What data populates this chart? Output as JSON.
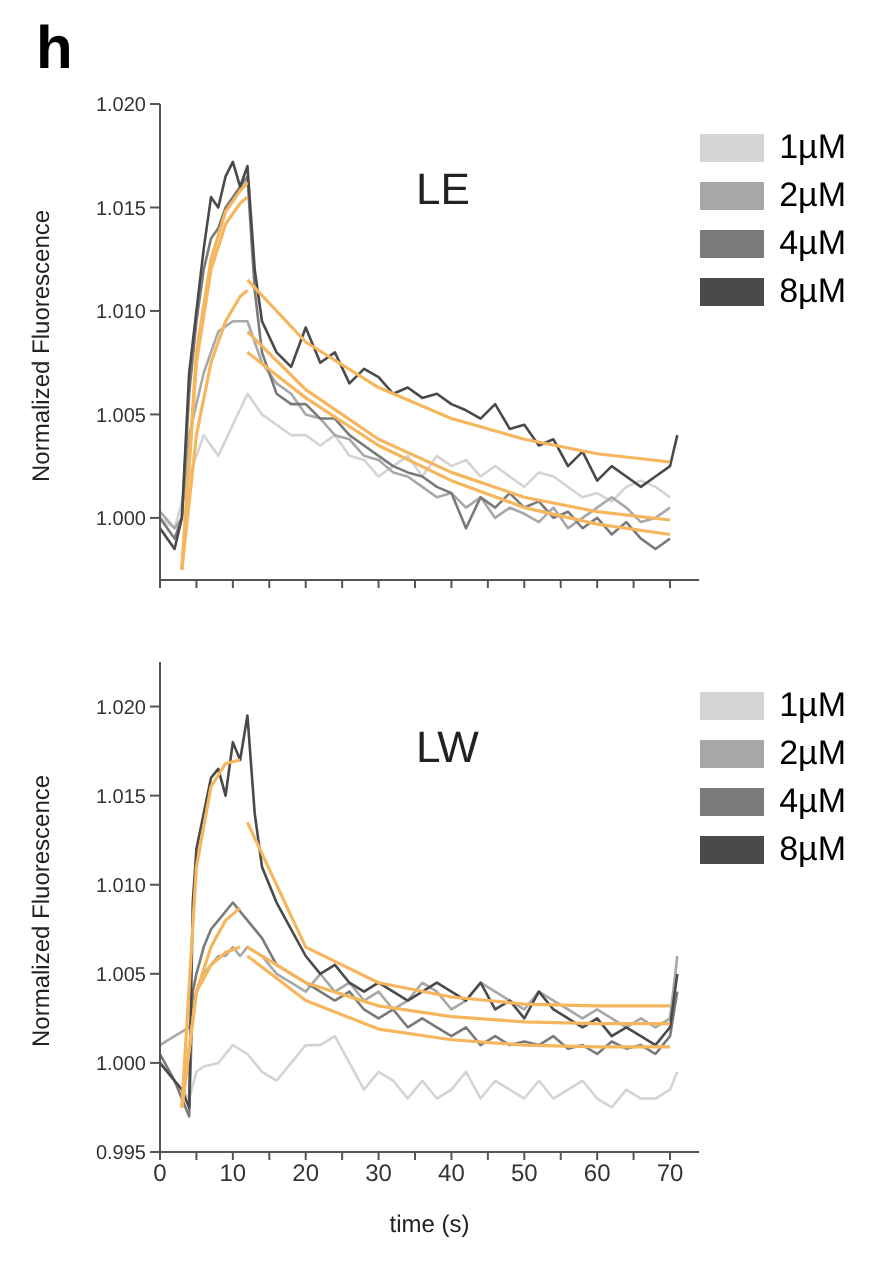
{
  "chart_data": [
    {
      "type": "line",
      "title": "h",
      "annotations": [
        "LE"
      ],
      "ylabel": "Normalized Fluorescence",
      "xlim": [
        0,
        74
      ],
      "ylim": [
        0.997,
        1.02
      ],
      "tick_labels": "y",
      "legend": "top right",
      "xticks": [
        {
          "value": 0,
          "label": null
        },
        {
          "value": 5,
          "label": null
        },
        {
          "value": 10,
          "label": null
        },
        {
          "value": 15,
          "label": null
        },
        {
          "value": 20,
          "label": null
        },
        {
          "value": 25,
          "label": null
        },
        {
          "value": 30,
          "label": null
        },
        {
          "value": 35,
          "label": null
        },
        {
          "value": 40,
          "label": null
        },
        {
          "value": 45,
          "label": null
        },
        {
          "value": 50,
          "label": null
        },
        {
          "value": 55,
          "label": null
        },
        {
          "value": 60,
          "label": null
        },
        {
          "value": 65,
          "label": null
        },
        {
          "value": 70,
          "label": null
        }
      ],
      "yticks": [
        {
          "value": 1,
          "label": "1.000"
        },
        {
          "value": 1.005,
          "label": "1.005"
        },
        {
          "value": 1.01,
          "label": "1.010"
        },
        {
          "value": 1.015,
          "label": "1.015"
        },
        {
          "value": 1.02,
          "label": "1.020"
        }
      ],
      "series": [
        {
          "name": "1µM",
          "color": "#d4d4d4",
          "x": [
            0,
            2,
            4,
            6,
            8,
            10,
            12,
            14,
            16,
            18,
            20,
            22,
            24,
            26,
            28,
            30,
            32,
            34,
            36,
            38,
            40,
            42,
            44,
            46,
            48,
            50,
            52,
            54,
            56,
            58,
            60,
            62,
            64,
            66,
            68,
            70
          ],
          "values": [
            1.0,
            0.9995,
            1.002,
            1.004,
            1.003,
            1.0045,
            1.006,
            1.005,
            1.0045,
            1.004,
            1.004,
            1.0035,
            1.004,
            1.003,
            1.0028,
            1.002,
            1.0025,
            1.003,
            1.002,
            1.003,
            1.0025,
            1.0028,
            1.002,
            1.0025,
            1.002,
            1.0015,
            1.0022,
            1.002,
            1.0015,
            1.001,
            1.0012,
            1.0008,
            1.0015,
            1.0018,
            1.0015,
            1.001
          ]
        },
        {
          "name": "2µM",
          "color": "#a8a8a8",
          "x": [
            0,
            2,
            3,
            4,
            6,
            8,
            10,
            12,
            13,
            14,
            16,
            18,
            20,
            22,
            24,
            26,
            28,
            30,
            32,
            34,
            36,
            38,
            40,
            42,
            44,
            46,
            48,
            50,
            52,
            54,
            56,
            58,
            60,
            62,
            64,
            66,
            68,
            70
          ],
          "values": [
            1.0003,
            0.9995,
            1.0,
            1.004,
            1.007,
            1.009,
            1.0095,
            1.0095,
            1.0085,
            1.0075,
            1.0065,
            1.006,
            1.005,
            1.0048,
            1.004,
            1.0038,
            1.003,
            1.0028,
            1.0022,
            1.002,
            1.0015,
            1.001,
            1.0012,
            1.0005,
            1.001,
            1.0,
            1.0005,
            1.0002,
            0.9998,
            1.0005,
            0.9995,
            1.0,
            1.0005,
            1.001,
            1.0005,
            0.9998,
            1.0,
            1.0005
          ]
        },
        {
          "name": "4µM",
          "color": "#7a7a7a",
          "x": [
            0,
            2,
            3,
            4,
            5,
            6,
            7,
            8,
            9,
            10,
            11,
            12,
            13,
            14,
            16,
            18,
            20,
            22,
            24,
            26,
            28,
            30,
            32,
            34,
            36,
            38,
            40,
            42,
            44,
            46,
            48,
            50,
            52,
            54,
            56,
            58,
            60,
            62,
            64,
            66,
            68,
            70
          ],
          "values": [
            1.0,
            0.999,
            1.0,
            1.006,
            1.0095,
            1.012,
            1.0135,
            1.014,
            1.015,
            1.0155,
            1.016,
            1.0165,
            1.011,
            1.008,
            1.006,
            1.0055,
            1.0055,
            1.0048,
            1.0048,
            1.004,
            1.0035,
            1.003,
            1.0025,
            1.0022,
            1.002,
            1.0015,
            1.0012,
            0.9995,
            1.001,
            1.0005,
            1.0012,
            1.0005,
            1.0008,
            1.0,
            1.0003,
            0.9995,
            1.0,
            0.9992,
            0.9998,
            0.999,
            0.9985,
            0.999
          ]
        },
        {
          "name": "8µM",
          "color": "#4a4a4a",
          "x": [
            0,
            2,
            3,
            4,
            5,
            6,
            7,
            8,
            9,
            10,
            11,
            12,
            13,
            14,
            16,
            18,
            20,
            22,
            24,
            26,
            28,
            30,
            32,
            34,
            36,
            38,
            40,
            42,
            44,
            46,
            48,
            50,
            52,
            54,
            56,
            58,
            60,
            62,
            64,
            66,
            68,
            70,
            71
          ],
          "values": [
            0.9995,
            0.9985,
            1.0,
            1.007,
            1.01,
            1.013,
            1.0155,
            1.015,
            1.0165,
            1.0172,
            1.016,
            1.017,
            1.012,
            1.0095,
            1.008,
            1.0073,
            1.0092,
            1.0075,
            1.008,
            1.0065,
            1.0072,
            1.0068,
            1.006,
            1.0063,
            1.0058,
            1.006,
            1.0055,
            1.0052,
            1.0048,
            1.0055,
            1.0043,
            1.0045,
            1.0035,
            1.0038,
            1.0025,
            1.0032,
            1.0018,
            1.0025,
            1.002,
            1.0015,
            1.002,
            1.0025,
            1.004
          ]
        },
        {
          "color": "#f5b65e",
          "x": [
            3,
            5,
            7,
            9,
            11,
            12
          ],
          "values": [
            0.9975,
            1.008,
            1.0125,
            1.0148,
            1.0158,
            1.0162
          ]
        },
        {
          "color": "#f5b65e",
          "x": [
            3,
            5,
            7,
            9,
            11,
            12
          ],
          "values": [
            0.9975,
            1.0075,
            1.012,
            1.0142,
            1.0152,
            1.0155
          ]
        },
        {
          "color": "#f5b65e",
          "x": [
            3,
            5,
            7,
            9,
            11,
            12
          ],
          "values": [
            0.9975,
            1.004,
            1.0075,
            1.0095,
            1.0107,
            1.011
          ]
        },
        {
          "color": "#f5b65e",
          "x": [
            12,
            20,
            30,
            40,
            50,
            60,
            70
          ],
          "values": [
            1.0115,
            1.0085,
            1.0063,
            1.0048,
            1.0038,
            1.0031,
            1.0027
          ]
        },
        {
          "color": "#f5b65e",
          "x": [
            12,
            20,
            30,
            40,
            50,
            60,
            70
          ],
          "values": [
            1.009,
            1.0062,
            1.0038,
            1.0022,
            1.001,
            1.0003,
            0.9999
          ]
        },
        {
          "color": "#f5b65e",
          "x": [
            12,
            20,
            30,
            40,
            50,
            60,
            70
          ],
          "values": [
            1.008,
            1.0058,
            1.0035,
            1.0018,
            1.0005,
            0.9997,
            0.9992
          ]
        }
      ]
    },
    {
      "type": "line",
      "annotations": [
        "LW"
      ],
      "ylabel": "Normalized Fluorescence",
      "xlabel": "time (s)",
      "xlim": [
        0,
        74
      ],
      "ylim": [
        0.995,
        1.0225
      ],
      "legend": "top right",
      "xticks": [
        0,
        {
          "value": 5,
          "label": null
        },
        10,
        {
          "value": 15,
          "label": null
        },
        20,
        {
          "value": 25,
          "label": null
        },
        30,
        {
          "value": 35,
          "label": null
        },
        40,
        {
          "value": 45,
          "label": null
        },
        50,
        {
          "value": 55,
          "label": null
        },
        60,
        {
          "value": 65,
          "label": null
        },
        70
      ],
      "yticks": [
        {
          "value": 0.995,
          "label": "0.995"
        },
        {
          "value": 1,
          "label": "1.000"
        },
        {
          "value": 1.005,
          "label": "1.005"
        },
        {
          "value": 1.01,
          "label": "1.010"
        },
        {
          "value": 1.015,
          "label": "1.015"
        },
        {
          "value": 1.02,
          "label": "1.020"
        }
      ],
      "series": [
        {
          "name": "1µM",
          "color": "#d4d4d4",
          "x": [
            0,
            2,
            4,
            5,
            6,
            8,
            10,
            12,
            14,
            16,
            18,
            20,
            22,
            24,
            26,
            28,
            30,
            32,
            34,
            36,
            38,
            40,
            42,
            44,
            46,
            48,
            50,
            52,
            54,
            56,
            58,
            60,
            62,
            64,
            66,
            68,
            70,
            71
          ],
          "values": [
            1.0,
            0.999,
            0.998,
            0.9995,
            0.9998,
            1.0,
            1.001,
            1.0005,
            0.9995,
            0.999,
            1.0,
            1.001,
            1.001,
            1.0015,
            1.0,
            0.9985,
            0.9995,
            0.999,
            0.998,
            0.999,
            0.998,
            0.9985,
            0.9995,
            0.998,
            0.999,
            0.9985,
            0.998,
            0.999,
            0.998,
            0.9985,
            0.999,
            0.998,
            0.9975,
            0.9985,
            0.998,
            0.998,
            0.9985,
            0.9995
          ]
        },
        {
          "name": "2µM",
          "color": "#a8a8a8",
          "x": [
            0,
            2,
            4,
            5,
            6,
            7,
            8,
            9,
            10,
            11,
            12,
            14,
            16,
            18,
            20,
            22,
            24,
            26,
            28,
            30,
            32,
            34,
            36,
            38,
            40,
            42,
            44,
            46,
            48,
            50,
            52,
            54,
            56,
            58,
            60,
            62,
            64,
            66,
            68,
            70,
            71
          ],
          "values": [
            1.001,
            1.0015,
            1.002,
            1.004,
            1.005,
            1.0055,
            1.006,
            1.006,
            1.0065,
            1.006,
            1.0065,
            1.006,
            1.005,
            1.0045,
            1.004,
            1.005,
            1.004,
            1.0045,
            1.0035,
            1.004,
            1.003,
            1.0035,
            1.0045,
            1.004,
            1.003,
            1.0035,
            1.0045,
            1.004,
            1.0035,
            1.003,
            1.004,
            1.0035,
            1.003,
            1.0025,
            1.003,
            1.0025,
            1.002,
            1.0025,
            1.002,
            1.0025,
            1.006
          ]
        },
        {
          "name": "4µM",
          "color": "#7a7a7a",
          "x": [
            0,
            2,
            4,
            4.5,
            5,
            6,
            7,
            8,
            9,
            10,
            11,
            12,
            14,
            16,
            18,
            20,
            22,
            24,
            26,
            28,
            30,
            32,
            34,
            36,
            38,
            40,
            42,
            44,
            46,
            48,
            50,
            52,
            54,
            56,
            58,
            60,
            62,
            64,
            66,
            68,
            70,
            71
          ],
          "values": [
            1.0005,
            0.999,
            0.997,
            1.004,
            1.005,
            1.0065,
            1.0075,
            1.008,
            1.0085,
            1.009,
            1.0085,
            1.008,
            1.007,
            1.0055,
            1.005,
            1.0045,
            1.004,
            1.0035,
            1.004,
            1.003,
            1.0025,
            1.003,
            1.002,
            1.0025,
            1.002,
            1.0015,
            1.002,
            1.001,
            1.0015,
            1.001,
            1.0012,
            1.001,
            1.0015,
            1.0008,
            1.001,
            1.0005,
            1.0012,
            1.0008,
            1.001,
            1.0005,
            1.0015,
            1.004
          ]
        },
        {
          "name": "8µM",
          "color": "#4a4a4a",
          "x": [
            0,
            2,
            3,
            4,
            4.5,
            5,
            6,
            7,
            8,
            9,
            10,
            11,
            12,
            13,
            14,
            16,
            18,
            20,
            22,
            24,
            26,
            28,
            30,
            32,
            34,
            36,
            38,
            40,
            42,
            44,
            46,
            48,
            50,
            52,
            54,
            56,
            58,
            60,
            62,
            64,
            66,
            68,
            70,
            71
          ],
          "values": [
            1.0,
            0.999,
            0.9985,
            0.9975,
            1.009,
            1.012,
            1.014,
            1.016,
            1.0165,
            1.015,
            1.018,
            1.017,
            1.0195,
            1.014,
            1.011,
            1.009,
            1.0075,
            1.006,
            1.005,
            1.0055,
            1.0045,
            1.004,
            1.0045,
            1.004,
            1.0035,
            1.004,
            1.0045,
            1.004,
            1.0035,
            1.0045,
            1.003,
            1.0035,
            1.0025,
            1.004,
            1.003,
            1.0025,
            1.002,
            1.0025,
            1.0015,
            1.002,
            1.0015,
            1.001,
            1.002,
            1.005
          ]
        },
        {
          "color": "#f5b65e",
          "x": [
            3,
            5,
            7,
            9,
            11
          ],
          "values": [
            0.9975,
            1.011,
            1.0155,
            1.0168,
            1.017
          ]
        },
        {
          "color": "#f5b65e",
          "x": [
            3,
            5,
            7,
            9,
            11
          ],
          "values": [
            0.9975,
            1.004,
            1.0065,
            1.008,
            1.0087
          ]
        },
        {
          "color": "#f5b65e",
          "x": [
            3,
            5,
            7,
            9,
            11
          ],
          "values": [
            0.9975,
            1.004,
            1.0055,
            1.0062,
            1.0065
          ]
        },
        {
          "color": "#f5b65e",
          "x": [
            12,
            20,
            30,
            40,
            50,
            60,
            70
          ],
          "values": [
            1.0135,
            1.0065,
            1.0045,
            1.0037,
            1.0033,
            1.0032,
            1.0032
          ]
        },
        {
          "color": "#f5b65e",
          "x": [
            12,
            20,
            30,
            40,
            50,
            60,
            70
          ],
          "values": [
            1.0065,
            1.0045,
            1.0032,
            1.0026,
            1.0023,
            1.0022,
            1.0022
          ]
        },
        {
          "color": "#f5b65e",
          "x": [
            12,
            20,
            30,
            40,
            50,
            60,
            70
          ],
          "values": [
            1.006,
            1.0035,
            1.0019,
            1.0013,
            1.001,
            1.0009,
            1.0009
          ]
        }
      ]
    }
  ]
}
